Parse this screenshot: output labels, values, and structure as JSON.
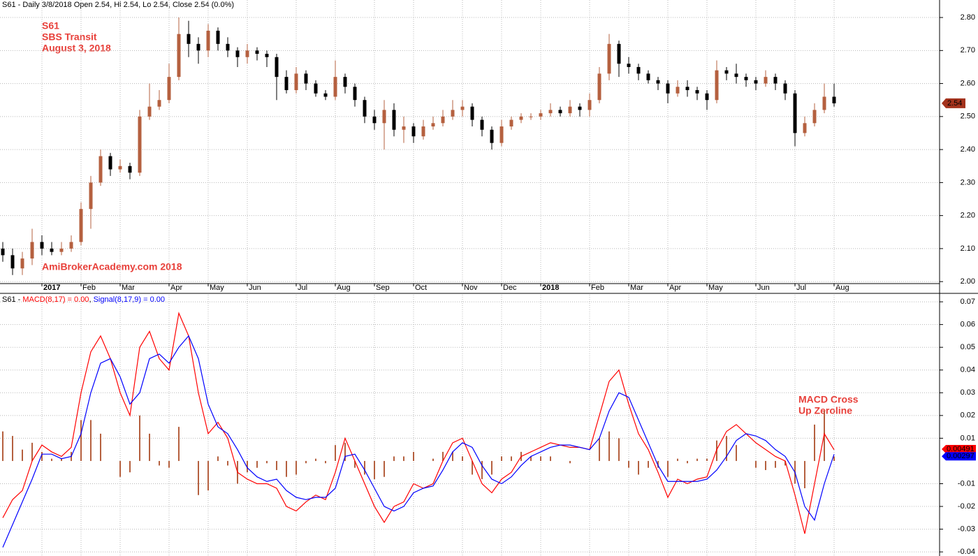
{
  "chart_data": [
    {
      "type": "candlestick",
      "title": "S61 - Daily 3/8/2018 Open 2.54, Hi 2.54, Lo 2.54, Close 2.54 (0.0%)",
      "annotations": [
        "S61",
        "SBS Transit",
        "August 3, 2018",
        "AmiBrokerAcademy.com  2018"
      ],
      "categories": [
        null,
        null,
        null,
        null,
        "2017",
        null,
        null,
        null,
        "Feb",
        null,
        null,
        null,
        "Mar",
        null,
        null,
        null,
        null,
        "Apr",
        null,
        null,
        null,
        "May",
        null,
        null,
        null,
        "Jun",
        null,
        null,
        null,
        null,
        "Jul",
        null,
        null,
        null,
        "Aug",
        null,
        null,
        null,
        "Sep",
        null,
        null,
        null,
        "Oct",
        null,
        null,
        null,
        null,
        "Nov",
        null,
        null,
        null,
        "Dec",
        null,
        null,
        null,
        "2018",
        null,
        null,
        null,
        null,
        "Feb",
        null,
        null,
        null,
        "Mar",
        null,
        null,
        null,
        "Apr",
        null,
        null,
        null,
        "May",
        null,
        null,
        null,
        null,
        "Jun",
        null,
        null,
        null,
        "Jul",
        null,
        null,
        null,
        "Aug"
      ],
      "open": [
        2.1,
        2.08,
        2.04,
        2.07,
        2.12,
        2.1,
        2.09,
        2.1,
        2.12,
        2.22,
        2.3,
        2.38,
        2.34,
        2.35,
        2.33,
        2.5,
        2.53,
        2.55,
        2.62,
        2.75,
        2.72,
        2.7,
        2.76,
        2.72,
        2.7,
        2.68,
        2.7,
        2.69,
        2.68,
        2.62,
        2.58,
        2.63,
        2.6,
        2.57,
        2.56,
        2.62,
        2.59,
        2.55,
        2.5,
        2.48,
        2.52,
        2.46,
        2.47,
        2.44,
        2.47,
        2.48,
        2.5,
        2.52,
        2.53,
        2.49,
        2.46,
        2.42,
        2.47,
        2.49,
        2.5,
        2.5,
        2.51,
        2.52,
        2.51,
        2.53,
        2.52,
        2.55,
        2.63,
        2.72,
        2.66,
        2.65,
        2.63,
        2.61,
        2.6,
        2.57,
        2.59,
        2.58,
        2.57,
        2.55,
        2.64,
        2.63,
        2.62,
        2.61,
        2.6,
        2.62,
        2.6,
        2.57,
        2.45,
        2.48,
        2.52,
        2.56
      ],
      "high": [
        2.12,
        2.1,
        2.09,
        2.16,
        2.14,
        2.12,
        2.12,
        2.14,
        2.24,
        2.32,
        2.4,
        2.39,
        2.37,
        2.36,
        2.52,
        2.6,
        2.58,
        2.66,
        2.8,
        2.79,
        2.74,
        2.78,
        2.77,
        2.74,
        2.71,
        2.72,
        2.71,
        2.7,
        2.69,
        2.64,
        2.65,
        2.64,
        2.61,
        2.58,
        2.67,
        2.63,
        2.6,
        2.56,
        2.52,
        2.55,
        2.54,
        2.5,
        2.48,
        2.49,
        2.5,
        2.52,
        2.55,
        2.55,
        2.54,
        2.5,
        2.47,
        2.49,
        2.5,
        2.51,
        2.51,
        2.52,
        2.54,
        2.53,
        2.55,
        2.54,
        2.57,
        2.65,
        2.75,
        2.73,
        2.68,
        2.66,
        2.64,
        2.62,
        2.61,
        2.61,
        2.61,
        2.59,
        2.58,
        2.67,
        2.65,
        2.66,
        2.63,
        2.62,
        2.64,
        2.63,
        2.61,
        2.58,
        2.5,
        2.54,
        2.6,
        2.6
      ],
      "low": [
        2.06,
        2.02,
        2.02,
        2.05,
        2.08,
        2.08,
        2.08,
        2.09,
        2.11,
        2.16,
        2.29,
        2.32,
        2.33,
        2.31,
        2.32,
        2.49,
        2.52,
        2.54,
        2.61,
        2.68,
        2.66,
        2.68,
        2.7,
        2.68,
        2.65,
        2.66,
        2.67,
        2.65,
        2.55,
        2.57,
        2.57,
        2.58,
        2.56,
        2.55,
        2.55,
        2.57,
        2.53,
        2.48,
        2.46,
        2.4,
        2.44,
        2.42,
        2.42,
        2.43,
        2.46,
        2.47,
        2.49,
        2.5,
        2.47,
        2.44,
        2.4,
        2.41,
        2.46,
        2.48,
        2.49,
        2.49,
        2.5,
        2.5,
        2.5,
        2.5,
        2.5,
        2.54,
        2.61,
        2.62,
        2.63,
        2.61,
        2.6,
        2.58,
        2.54,
        2.56,
        2.56,
        2.55,
        2.52,
        2.54,
        2.61,
        2.6,
        2.59,
        2.58,
        2.59,
        2.58,
        2.55,
        2.41,
        2.44,
        2.47,
        2.51,
        2.53
      ],
      "close": [
        2.08,
        2.04,
        2.07,
        2.12,
        2.1,
        2.09,
        2.1,
        2.12,
        2.22,
        2.3,
        2.38,
        2.34,
        2.35,
        2.33,
        2.5,
        2.53,
        2.55,
        2.62,
        2.75,
        2.72,
        2.7,
        2.76,
        2.72,
        2.7,
        2.68,
        2.7,
        2.69,
        2.68,
        2.62,
        2.58,
        2.63,
        2.6,
        2.57,
        2.56,
        2.62,
        2.59,
        2.55,
        2.5,
        2.48,
        2.52,
        2.46,
        2.47,
        2.44,
        2.47,
        2.48,
        2.5,
        2.52,
        2.53,
        2.49,
        2.46,
        2.42,
        2.47,
        2.49,
        2.5,
        2.5,
        2.51,
        2.52,
        2.51,
        2.53,
        2.52,
        2.55,
        2.63,
        2.72,
        2.66,
        2.65,
        2.63,
        2.61,
        2.6,
        2.57,
        2.59,
        2.58,
        2.57,
        2.55,
        2.64,
        2.63,
        2.62,
        2.61,
        2.6,
        2.62,
        2.6,
        2.57,
        2.45,
        2.48,
        2.52,
        2.56,
        2.54
      ],
      "up_color": "#b5603f",
      "down_color": "#000000",
      "last_value": 2.54,
      "last_color": "#a3321c",
      "ylim": [
        1.994,
        2.853
      ],
      "yticks": [
        {
          "value": 2.0,
          "label": "2.00"
        },
        {
          "value": 2.1,
          "label": "2.10"
        },
        {
          "value": 2.2,
          "label": "2.20"
        },
        {
          "value": 2.3,
          "label": "2.30"
        },
        {
          "value": 2.4,
          "label": "2.40"
        },
        {
          "value": 2.5,
          "label": "2.50"
        },
        {
          "value": 2.6,
          "label": "2.60"
        },
        {
          "value": 2.7,
          "label": "2.70"
        },
        {
          "value": 2.8,
          "label": "2.80"
        }
      ],
      "grid": true
    },
    {
      "type": "macd",
      "title": "S61 - ",
      "legend_separator": ", ",
      "annotations": [
        "MACD Cross",
        "Up Zeroline"
      ],
      "series": [
        {
          "name": "MACD(8,17) = 0.00",
          "color": "#ff0000",
          "values": [
            -0.025,
            -0.017,
            -0.013,
            0.0,
            0.007,
            0.004,
            0.002,
            0.006,
            0.03,
            0.048,
            0.055,
            0.045,
            0.03,
            0.02,
            0.05,
            0.057,
            0.045,
            0.04,
            0.065,
            0.055,
            0.03,
            0.012,
            0.017,
            0.01,
            -0.005,
            -0.008,
            -0.01,
            -0.01,
            -0.012,
            -0.02,
            -0.022,
            -0.018,
            -0.015,
            -0.017,
            -0.005,
            0.01,
            0.0,
            -0.01,
            -0.02,
            -0.027,
            -0.02,
            -0.018,
            -0.01,
            -0.012,
            -0.01,
            0.0,
            0.008,
            0.01,
            0.0,
            -0.01,
            -0.014,
            -0.008,
            -0.005,
            0.002,
            0.004,
            0.006,
            0.008,
            0.007,
            0.006,
            0.006,
            0.005,
            0.02,
            0.035,
            0.04,
            0.025,
            0.012,
            0.005,
            -0.005,
            -0.016,
            -0.008,
            -0.01,
            -0.008,
            -0.007,
            0.005,
            0.013,
            0.016,
            0.012,
            0.008,
            0.005,
            0.002,
            0.0,
            -0.015,
            -0.032,
            -0.01,
            0.012,
            0.00491
          ]
        },
        {
          "name": "Signal(8,17,9) = 0.00",
          "color": "#0000ff",
          "values": [
            -0.038,
            -0.028,
            -0.018,
            -0.008,
            0.003,
            0.003,
            0.001,
            0.002,
            0.012,
            0.03,
            0.043,
            0.045,
            0.037,
            0.025,
            0.03,
            0.045,
            0.047,
            0.043,
            0.05,
            0.055,
            0.045,
            0.025,
            0.015,
            0.012,
            0.005,
            -0.003,
            -0.007,
            -0.009,
            -0.008,
            -0.013,
            -0.016,
            -0.017,
            -0.016,
            -0.016,
            -0.012,
            0.002,
            0.003,
            -0.004,
            -0.012,
            -0.02,
            -0.022,
            -0.02,
            -0.014,
            -0.012,
            -0.011,
            -0.004,
            0.004,
            0.008,
            0.006,
            -0.002,
            -0.008,
            -0.01,
            -0.007,
            -0.002,
            0.002,
            0.004,
            0.006,
            0.007,
            0.007,
            0.006,
            0.005,
            0.01,
            0.022,
            0.03,
            0.028,
            0.018,
            0.008,
            -0.002,
            -0.009,
            -0.009,
            -0.009,
            -0.009,
            -0.008,
            -0.004,
            0.002,
            0.009,
            0.012,
            0.011,
            0.009,
            0.005,
            0.002,
            -0.005,
            -0.02,
            -0.026,
            -0.01,
            0.00297
          ]
        }
      ],
      "histogram": {
        "color": "#b5603f",
        "values": [
          0.013,
          0.011,
          0.005,
          0.008,
          0.004,
          0.001,
          0.001,
          0.004,
          0.018,
          0.018,
          0.012,
          0.0,
          -0.007,
          -0.005,
          0.02,
          0.012,
          -0.002,
          -0.003,
          0.015,
          0.0,
          -0.015,
          -0.013,
          0.002,
          -0.002,
          -0.01,
          -0.005,
          -0.003,
          -0.001,
          -0.004,
          -0.007,
          -0.006,
          -0.001,
          0.001,
          -0.001,
          0.007,
          0.008,
          -0.003,
          -0.006,
          -0.008,
          -0.007,
          0.002,
          0.002,
          0.004,
          0.0,
          0.001,
          0.004,
          0.004,
          0.002,
          -0.006,
          -0.008,
          -0.006,
          0.002,
          0.002,
          0.004,
          0.002,
          0.002,
          0.002,
          0.0,
          -0.001,
          0.0,
          0.0,
          0.01,
          0.013,
          0.01,
          -0.003,
          -0.006,
          -0.003,
          -0.003,
          -0.007,
          0.001,
          -0.001,
          0.001,
          0.001,
          0.009,
          0.011,
          0.007,
          0.0,
          -0.003,
          -0.004,
          -0.003,
          -0.002,
          -0.01,
          -0.012,
          0.016,
          0.022,
          0.00194
        ]
      },
      "ylim": [
        -0.0418,
        0.0731
      ],
      "yticks": [
        0.07,
        0.06,
        0.05,
        0.04,
        0.03,
        0.02,
        0.01,
        -0.01,
        -0.02,
        -0.03,
        -0.04
      ],
      "grid": true
    }
  ]
}
